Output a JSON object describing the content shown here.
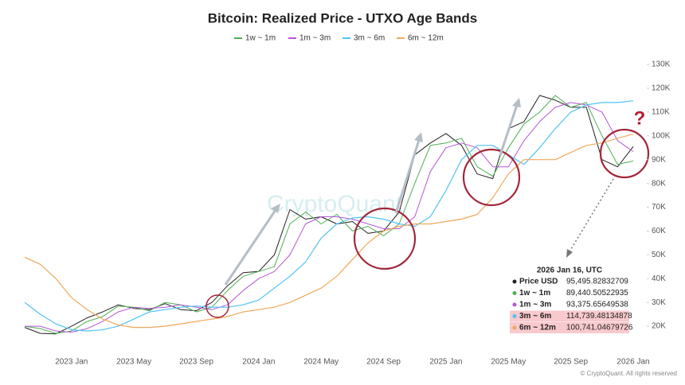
{
  "chart_data": {
    "type": "line",
    "title": "Bitcoin: Realized Price - UTXO Age Bands",
    "watermark": "CryptoQuant",
    "footer": "© CryptoQuant. All rights reserved",
    "annotation": "?",
    "categories": [
      null,
      null,
      null,
      "2023 Jan",
      null,
      null,
      null,
      "2023 May",
      null,
      null,
      null,
      "2023 Sep",
      null,
      null,
      null,
      "2024 Jan",
      null,
      null,
      null,
      "2024 May",
      null,
      null,
      null,
      "2024 Sep",
      null,
      null,
      null,
      "2025 Jan",
      null,
      null,
      null,
      "2025 May",
      null,
      null,
      null,
      "2025 Sep",
      null,
      null,
      null,
      "2026 Jan"
    ],
    "series": [
      {
        "name": "Price USD",
        "color": "#222222",
        "in_legend": false,
        "width": 1,
        "values": [
          19500,
          17000,
          16800,
          20000,
          23500,
          26000,
          29000,
          27500,
          27000,
          29500,
          27000,
          26500,
          30000,
          37000,
          42500,
          43000,
          50000,
          69000,
          65000,
          66000,
          63000,
          64000,
          59000,
          60000,
          68000,
          92000,
          97000,
          101000,
          96000,
          84000,
          82000,
          103000,
          106000,
          117000,
          115000,
          112000,
          112000,
          90000,
          87000,
          95495.82832709
        ]
      },
      {
        "name": "1w ~ 1m",
        "color": "#4caf50",
        "in_legend": true,
        "width": 1,
        "values": [
          20000,
          19000,
          17000,
          18000,
          22000,
          24000,
          28500,
          28000,
          26500,
          30000,
          29000,
          26000,
          28000,
          35000,
          41000,
          43000,
          45000,
          63000,
          68000,
          63000,
          67000,
          60000,
          62000,
          58000,
          63000,
          80000,
          96000,
          97000,
          99000,
          87000,
          83000,
          95000,
          105000,
          110000,
          117000,
          112000,
          114000,
          100000,
          88000,
          89440.50522935
        ]
      },
      {
        "name": "1m ~ 3m",
        "color": "#b656d6",
        "in_legend": true,
        "width": 1,
        "values": [
          20000,
          20000,
          18000,
          17500,
          19000,
          22000,
          26000,
          28000,
          27500,
          28000,
          29000,
          28000,
          27000,
          29000,
          35000,
          40000,
          43000,
          50000,
          63000,
          66000,
          66000,
          65000,
          63000,
          61000,
          61000,
          66000,
          85000,
          95000,
          97000,
          95000,
          87000,
          87000,
          98000,
          106000,
          112000,
          114000,
          113000,
          110000,
          98000,
          93375.65649538
        ]
      },
      {
        "name": "3m ~ 6m",
        "color": "#4fc3f7",
        "in_legend": true,
        "width": 1.2,
        "values": [
          30000,
          25000,
          21000,
          18500,
          18000,
          18500,
          20000,
          23000,
          26000,
          27000,
          28000,
          28500,
          28000,
          28000,
          29000,
          31000,
          36000,
          41000,
          47000,
          57000,
          63000,
          65500,
          66000,
          65000,
          63000,
          62000,
          66000,
          77000,
          90000,
          96000,
          96000,
          92000,
          88000,
          95000,
          103000,
          110000,
          113000,
          114000,
          114000,
          114739.48134878
        ]
      },
      {
        "name": "6m ~ 12m",
        "color": "#f0a85a",
        "in_legend": true,
        "width": 1.2,
        "values": [
          49000,
          46000,
          40000,
          32000,
          27000,
          23000,
          20500,
          19500,
          19500,
          20000,
          21000,
          22000,
          23000,
          24000,
          26000,
          27000,
          28000,
          30000,
          33000,
          36000,
          41000,
          48000,
          55000,
          60000,
          62000,
          63000,
          63000,
          64000,
          65000,
          67000,
          74000,
          84000,
          90000,
          90000,
          90000,
          93000,
          96000,
          97000,
          99000,
          100741.04679726
        ]
      }
    ],
    "ylim": [
      10000,
      133700
    ],
    "yticks": [
      {
        "value": 20000,
        "label": "20K"
      },
      {
        "value": 30000,
        "label": "30K"
      },
      {
        "value": 40000,
        "label": "40K"
      },
      {
        "value": 50000,
        "label": "50K"
      },
      {
        "value": 60000,
        "label": "60K"
      },
      {
        "value": 70000,
        "label": "70K"
      },
      {
        "value": 80000,
        "label": "80K"
      },
      {
        "value": 90000,
        "label": "90K"
      },
      {
        "value": 100000,
        "label": "100K"
      },
      {
        "value": 110000,
        "label": "110K"
      },
      {
        "value": 120000,
        "label": "120K"
      },
      {
        "value": 130000,
        "label": "130K"
      }
    ],
    "y_axis_side": "right",
    "grid": false,
    "tooltip": {
      "title": "2026 Jan 16, UTC",
      "values": [
        "95,495.82832709",
        "89,440.50522935",
        "93,375.65649538",
        "114,739.48134878",
        "100,741.04679726"
      ],
      "highlight": [
        false,
        false,
        false,
        true,
        true
      ]
    }
  }
}
